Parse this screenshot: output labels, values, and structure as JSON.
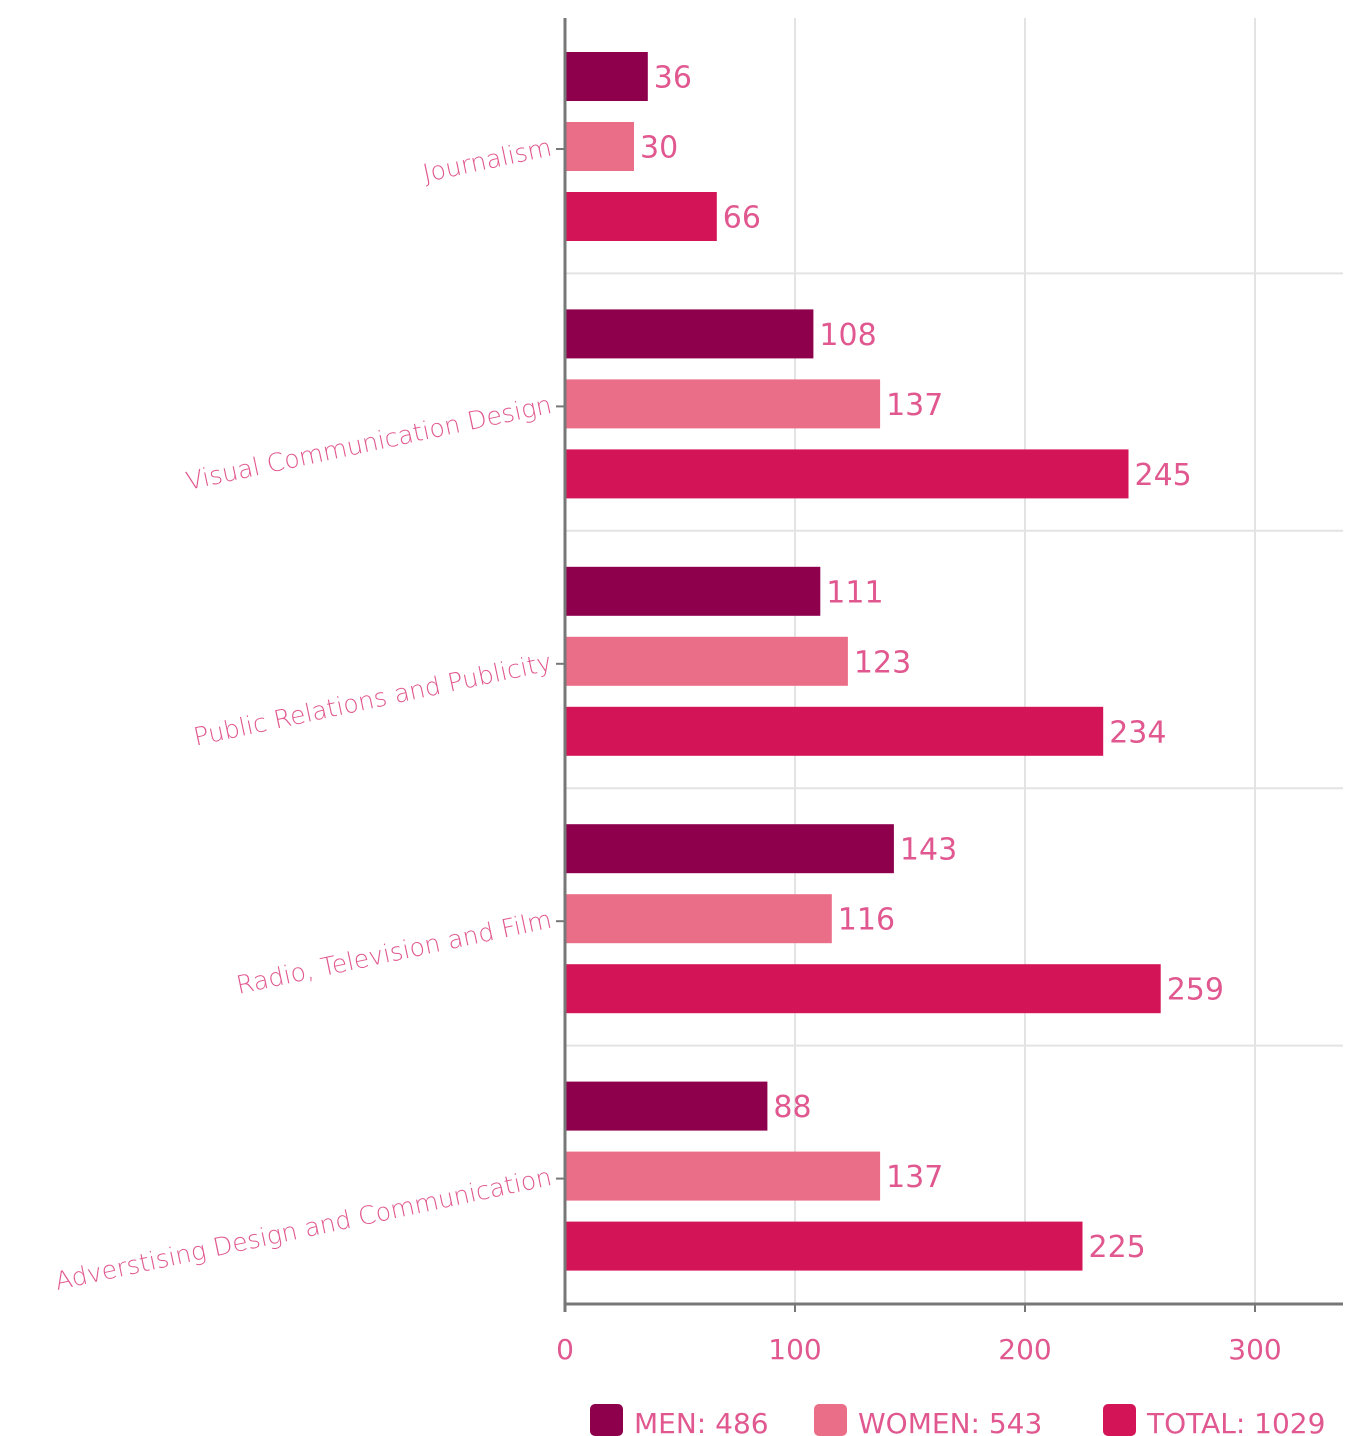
{
  "chart_data": {
    "type": "bar",
    "orientation": "horizontal",
    "categories": [
      "Journalism",
      "Visual Communication Design",
      "Public Relations and Publicity",
      "Radio, Television and Film",
      "Adverstising Design and Communication"
    ],
    "series": [
      {
        "key": "men",
        "color": "#8e004c",
        "values": [
          36,
          108,
          111,
          143,
          88
        ]
      },
      {
        "key": "women",
        "color": "#eb6e88",
        "values": [
          30,
          137,
          123,
          116,
          137
        ]
      },
      {
        "key": "total",
        "color": "#d31456",
        "values": [
          66,
          245,
          234,
          259,
          225
        ]
      }
    ],
    "xlim": [
      0,
      340
    ],
    "xticks": [
      0,
      100,
      200,
      300
    ],
    "grid": true,
    "legend_position": "bottom-right",
    "legend": [
      {
        "label": "MEN: 486",
        "color": "#8e004c"
      },
      {
        "label": "WOMEN: 543",
        "color": "#eb6e88"
      },
      {
        "label": "TOTAL: 1029",
        "color": "#d31456"
      }
    ],
    "label_color": "#e0588f",
    "axis_color": "#777777",
    "grid_color": "#e3e3e3"
  }
}
